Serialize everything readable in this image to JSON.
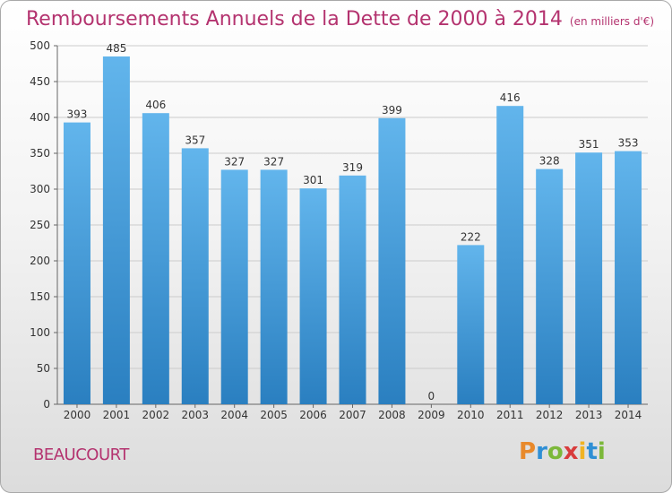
{
  "header": {
    "title": "Remboursements Annuels de la Dette de 2000 à 2014",
    "unit": "(en milliers d'€)"
  },
  "footer": {
    "commune": "BEAUCOURT",
    "logo_letters": [
      "P",
      "r",
      "o",
      "x",
      "i",
      "t",
      "i"
    ]
  },
  "colors": {
    "bar_light": "#62b5ec",
    "bar_dark": "#2a7fc0",
    "title": "#b4336f",
    "grid": "#cccccc"
  },
  "chart_data": {
    "type": "bar",
    "title": "Remboursements Annuels de la Dette de 2000 à 2014",
    "categories": [
      "2000",
      "2001",
      "2002",
      "2003",
      "2004",
      "2005",
      "2006",
      "2007",
      "2008",
      "2009",
      "2010",
      "2011",
      "2012",
      "2013",
      "2014"
    ],
    "values": [
      393,
      485,
      406,
      357,
      327,
      327,
      301,
      319,
      399,
      0,
      222,
      416,
      328,
      351,
      353
    ],
    "ylim": [
      0,
      500
    ],
    "yticks": [
      0,
      50,
      100,
      150,
      200,
      250,
      300,
      350,
      400,
      450,
      500
    ],
    "grid": true,
    "data_labels": true
  }
}
